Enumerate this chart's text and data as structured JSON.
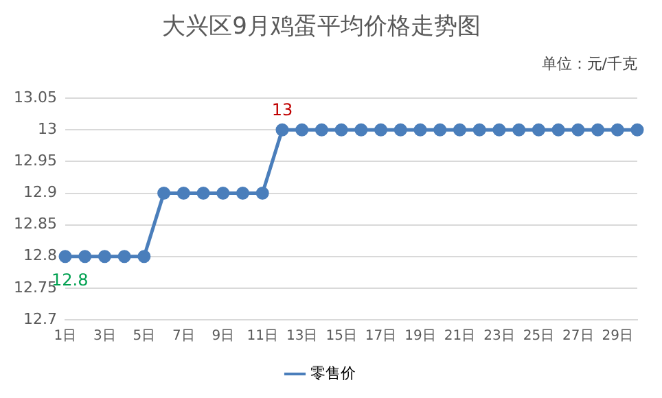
{
  "chart_data": {
    "type": "line",
    "title": "大兴区9月鸡蛋平均价格走势图",
    "subtitle": "单位：元/千克",
    "categories": [
      "1日",
      null,
      "3日",
      null,
      "5日",
      null,
      "7日",
      null,
      "9日",
      null,
      "11日",
      null,
      "13日",
      null,
      "15日",
      null,
      "17日",
      null,
      "19日",
      null,
      "21日",
      null,
      "23日",
      null,
      "25日",
      null,
      "27日",
      null,
      "29日",
      null
    ],
    "series": [
      {
        "name": "零售价",
        "color": "#4a7ebb",
        "values": [
          12.8,
          12.8,
          12.8,
          12.8,
          12.8,
          12.9,
          12.9,
          12.9,
          12.9,
          12.9,
          12.9,
          13,
          13,
          13,
          13,
          13,
          13,
          13,
          13,
          13,
          13,
          13,
          13,
          13,
          13,
          13,
          13,
          13,
          13,
          13
        ],
        "value_labels": [
          "12.8",
          null,
          null,
          null,
          null,
          null,
          null,
          null,
          null,
          null,
          null,
          "13",
          null,
          null,
          null,
          null,
          null,
          null,
          null,
          null,
          null,
          null,
          null,
          null,
          null,
          null,
          null,
          null,
          null,
          null
        ]
      }
    ],
    "ylim": [
      12.7,
      13.05
    ],
    "yticks": [
      12.7,
      12.75,
      12.8,
      12.85,
      12.9,
      12.95,
      13,
      13.05
    ],
    "grid": "y",
    "legend": "bottom",
    "marker": "circle",
    "line_style": "solid"
  }
}
